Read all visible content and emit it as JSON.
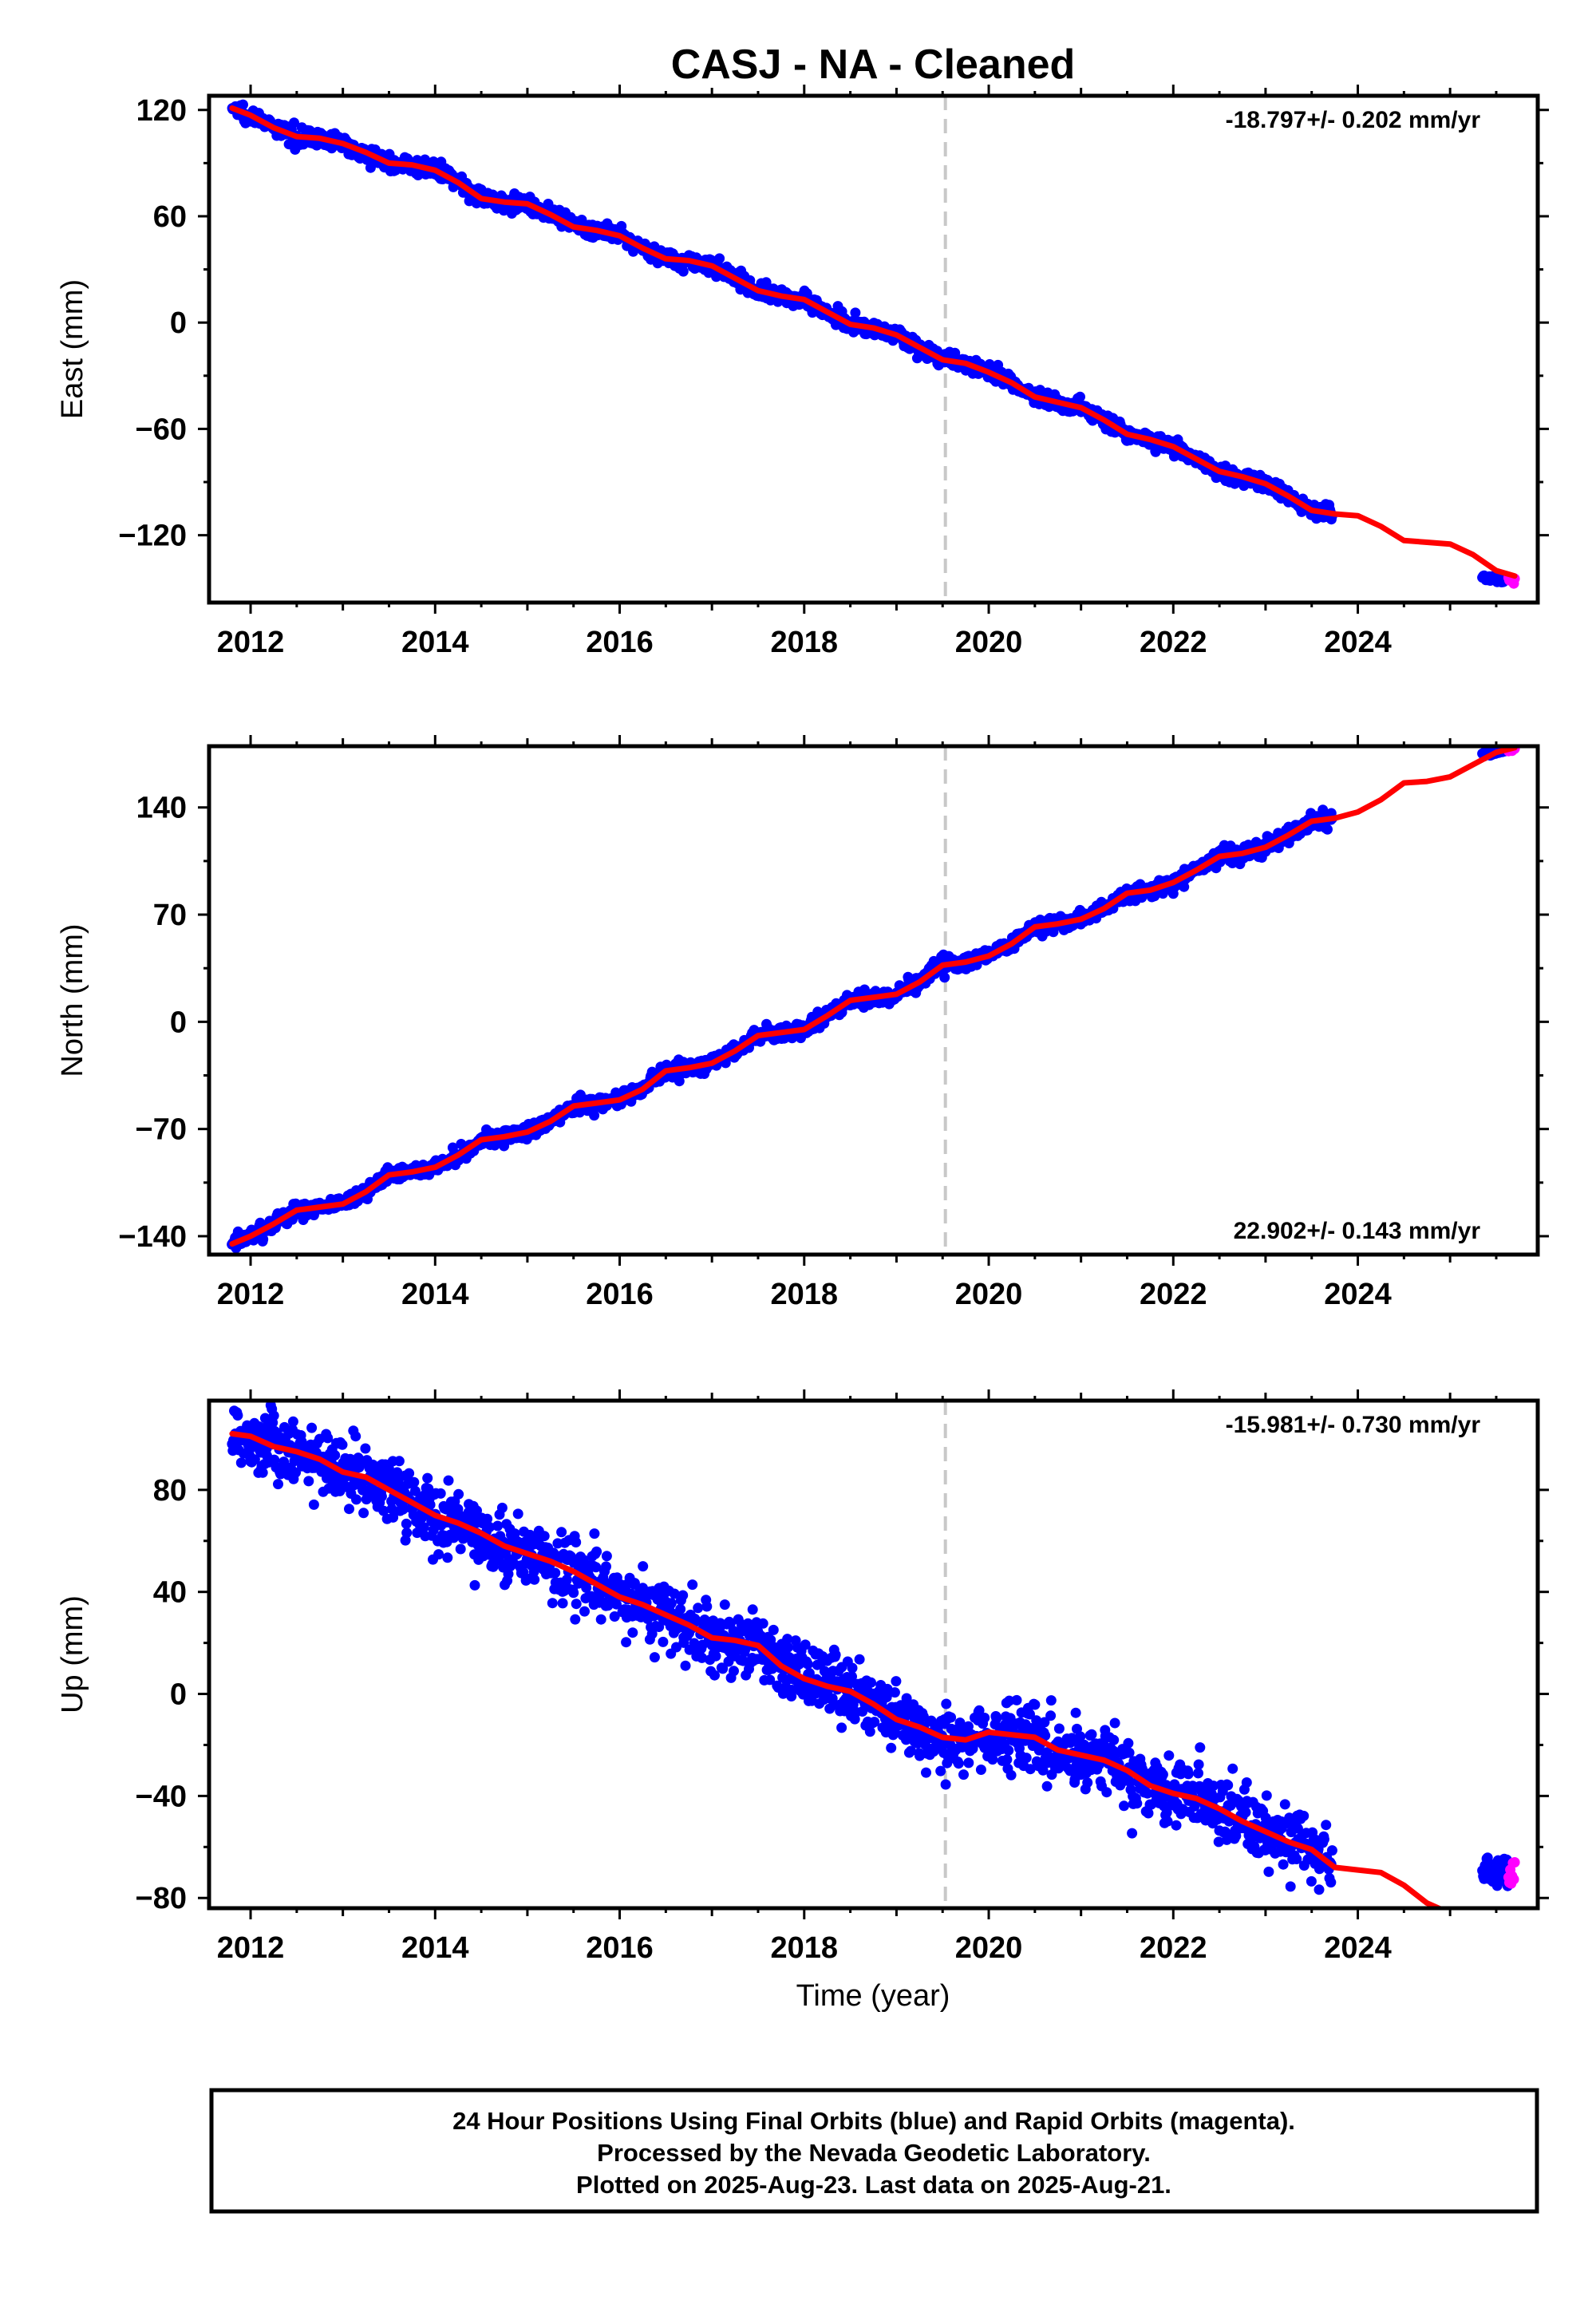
{
  "title": "CASJ  - NA - Cleaned",
  "xlabel": "Time (year)",
  "footer": {
    "line1": "24 Hour Positions Using Final Orbits (blue) and Rapid Orbits (magenta).",
    "line2": "Processed by the Nevada Geodetic Laboratory.",
    "line3": "Plotted on 2025-Aug-23. Last data on 2025-Aug-21."
  },
  "colors": {
    "final": "#0000ff",
    "rapid": "#ff00ff",
    "model": "#ff0000",
    "marker": "#c8c8c8",
    "frame": "#000000"
  },
  "chart_data": [
    {
      "type": "scatter",
      "component": "east",
      "ylabel": "East (mm)",
      "rate": "-18.797+/- 0.202 mm/yr",
      "rate_position": "top-right",
      "xlim": [
        2011.55,
        2025.95
      ],
      "ylim": [
        -158,
        128
      ],
      "xticks": [
        2012,
        2014,
        2016,
        2018,
        2020,
        2022,
        2024
      ],
      "yticks": [
        120,
        60,
        0,
        -60,
        -120
      ],
      "ytick_labels": [
        "120",
        "60",
        "0",
        "−60",
        "−120"
      ],
      "vline_x": 2019.53,
      "data_span": [
        2011.8,
        2023.72
      ],
      "noise_mm": 2.2,
      "model": {
        "x": [
          2011.8,
          2012.0,
          2012.25,
          2012.5,
          2012.75,
          2013.0,
          2013.25,
          2013.5,
          2013.75,
          2014.0,
          2014.25,
          2014.5,
          2014.75,
          2015.0,
          2015.25,
          2015.5,
          2015.75,
          2016.0,
          2016.25,
          2016.5,
          2016.75,
          2017.0,
          2017.25,
          2017.5,
          2017.75,
          2018.0,
          2018.25,
          2018.5,
          2018.75,
          2019.0,
          2019.25,
          2019.5,
          2019.75,
          2020.0,
          2020.25,
          2020.5,
          2020.75,
          2021.0,
          2021.25,
          2021.5,
          2021.75,
          2022.0,
          2022.25,
          2022.5,
          2022.75,
          2023.0,
          2023.25,
          2023.5,
          2023.75,
          2024.0,
          2024.25,
          2024.5,
          2024.75,
          2025.0,
          2025.25,
          2025.5,
          2025.7
        ],
        "y": [
          121,
          117,
          110,
          105,
          104,
          101,
          96,
          90,
          89,
          86,
          79,
          70,
          68,
          67,
          61,
          54,
          52,
          49,
          42,
          36,
          35,
          32,
          25,
          18,
          15,
          13,
          6,
          -1,
          -3,
          -7,
          -14,
          -21,
          -23,
          -28,
          -34,
          -42,
          -45,
          -48,
          -55,
          -63,
          -66,
          -70,
          -77,
          -84,
          -87,
          -91,
          -98,
          -106,
          -108,
          -109,
          -115,
          -123,
          -124,
          -125,
          -131,
          -140,
          -143
        ]
      },
      "rapid": {
        "x": [
          2025.35,
          2025.7
        ],
        "y": [
          -144,
          -146
        ],
        "spread": 4
      }
    },
    {
      "type": "scatter",
      "component": "north",
      "ylabel": "North (mm)",
      "rate": "22.902+/- 0.143 mm/yr",
      "rate_position": "bottom-right",
      "xlim": [
        2011.55,
        2025.95
      ],
      "ylim": [
        -152,
        180
      ],
      "xticks": [
        2012,
        2014,
        2016,
        2018,
        2020,
        2022,
        2024
      ],
      "yticks": [
        140,
        70,
        0,
        -70,
        -140
      ],
      "ytick_labels": [
        "140",
        "70",
        "0",
        "−70",
        "−140"
      ],
      "vline_x": 2019.53,
      "data_span": [
        2011.8,
        2023.72
      ],
      "noise_mm": 2.5,
      "model": {
        "x": [
          2011.8,
          2012.0,
          2012.25,
          2012.5,
          2012.75,
          2013.0,
          2013.25,
          2013.5,
          2013.75,
          2014.0,
          2014.25,
          2014.5,
          2014.75,
          2015.0,
          2015.25,
          2015.5,
          2015.75,
          2016.0,
          2016.25,
          2016.5,
          2016.75,
          2017.0,
          2017.25,
          2017.5,
          2017.75,
          2018.0,
          2018.25,
          2018.5,
          2018.75,
          2019.0,
          2019.25,
          2019.5,
          2019.75,
          2020.0,
          2020.25,
          2020.5,
          2020.75,
          2021.0,
          2021.25,
          2021.5,
          2021.75,
          2022.0,
          2022.25,
          2022.5,
          2022.75,
          2023.0,
          2023.25,
          2023.5,
          2023.75,
          2024.0,
          2024.25,
          2024.5,
          2024.75,
          2025.0,
          2025.25,
          2025.5,
          2025.7
        ],
        "y": [
          -145,
          -140,
          -132,
          -123,
          -121,
          -119,
          -111,
          -100,
          -98,
          -95,
          -87,
          -77,
          -75,
          -72,
          -65,
          -55,
          -53,
          -51,
          -44,
          -32,
          -30,
          -27,
          -19,
          -9,
          -7,
          -5,
          4,
          14,
          16,
          18,
          26,
          37,
          39,
          43,
          51,
          62,
          64,
          67,
          74,
          84,
          86,
          91,
          99,
          108,
          110,
          114,
          122,
          131,
          133,
          137,
          145,
          156,
          157,
          160,
          168,
          176,
          179
        ]
      },
      "rapid": {
        "x": [
          2025.35,
          2025.7
        ],
        "y": [
          175,
          179
        ],
        "spread": 4
      }
    },
    {
      "type": "scatter",
      "component": "up",
      "ylabel": "Up (mm)",
      "rate": "-15.981+/- 0.730 mm/yr",
      "rate_position": "top-right",
      "xlim": [
        2011.55,
        2025.95
      ],
      "ylim": [
        -84,
        115
      ],
      "xticks": [
        2012,
        2014,
        2016,
        2018,
        2020,
        2022,
        2024
      ],
      "yticks": [
        80,
        40,
        0,
        -40,
        -80
      ],
      "ytick_labels": [
        "80",
        "40",
        "0",
        "−40",
        "−80"
      ],
      "vline_x": 2019.53,
      "data_span": [
        2011.8,
        2023.72
      ],
      "noise_mm": 6.5,
      "model": {
        "x": [
          2011.8,
          2012.0,
          2012.25,
          2012.5,
          2012.75,
          2013.0,
          2013.25,
          2013.5,
          2013.75,
          2014.0,
          2014.25,
          2014.5,
          2014.75,
          2015.0,
          2015.25,
          2015.5,
          2015.75,
          2016.0,
          2016.25,
          2016.5,
          2016.75,
          2017.0,
          2017.25,
          2017.5,
          2017.75,
          2018.0,
          2018.25,
          2018.5,
          2018.75,
          2019.0,
          2019.25,
          2019.5,
          2019.75,
          2020.0,
          2020.25,
          2020.5,
          2020.75,
          2021.0,
          2021.25,
          2021.5,
          2021.75,
          2022.0,
          2022.25,
          2022.5,
          2022.75,
          2023.0,
          2023.25,
          2023.5,
          2023.75,
          2024.0,
          2024.25,
          2024.5,
          2024.75,
          2025.0,
          2025.25,
          2025.5,
          2025.7
        ],
        "y": [
          102,
          101,
          97,
          95,
          92,
          87,
          85,
          80,
          75,
          70,
          67,
          63,
          58,
          55,
          52,
          48,
          43,
          38,
          35,
          31,
          27,
          22,
          21,
          19,
          11,
          6,
          3,
          1,
          -4,
          -10,
          -13,
          -17,
          -18,
          -15,
          -16,
          -17,
          -22,
          -24,
          -26,
          -30,
          -36,
          -39,
          -41,
          -45,
          -50,
          -54,
          -58,
          -61,
          -68,
          -69,
          -70,
          -75,
          -82,
          -86,
          -87,
          -88,
          -88
        ]
      },
      "rapid": {
        "x": [
          2025.35,
          2025.7
        ],
        "y": [
          -70,
          -70
        ],
        "spread": 12
      }
    }
  ]
}
